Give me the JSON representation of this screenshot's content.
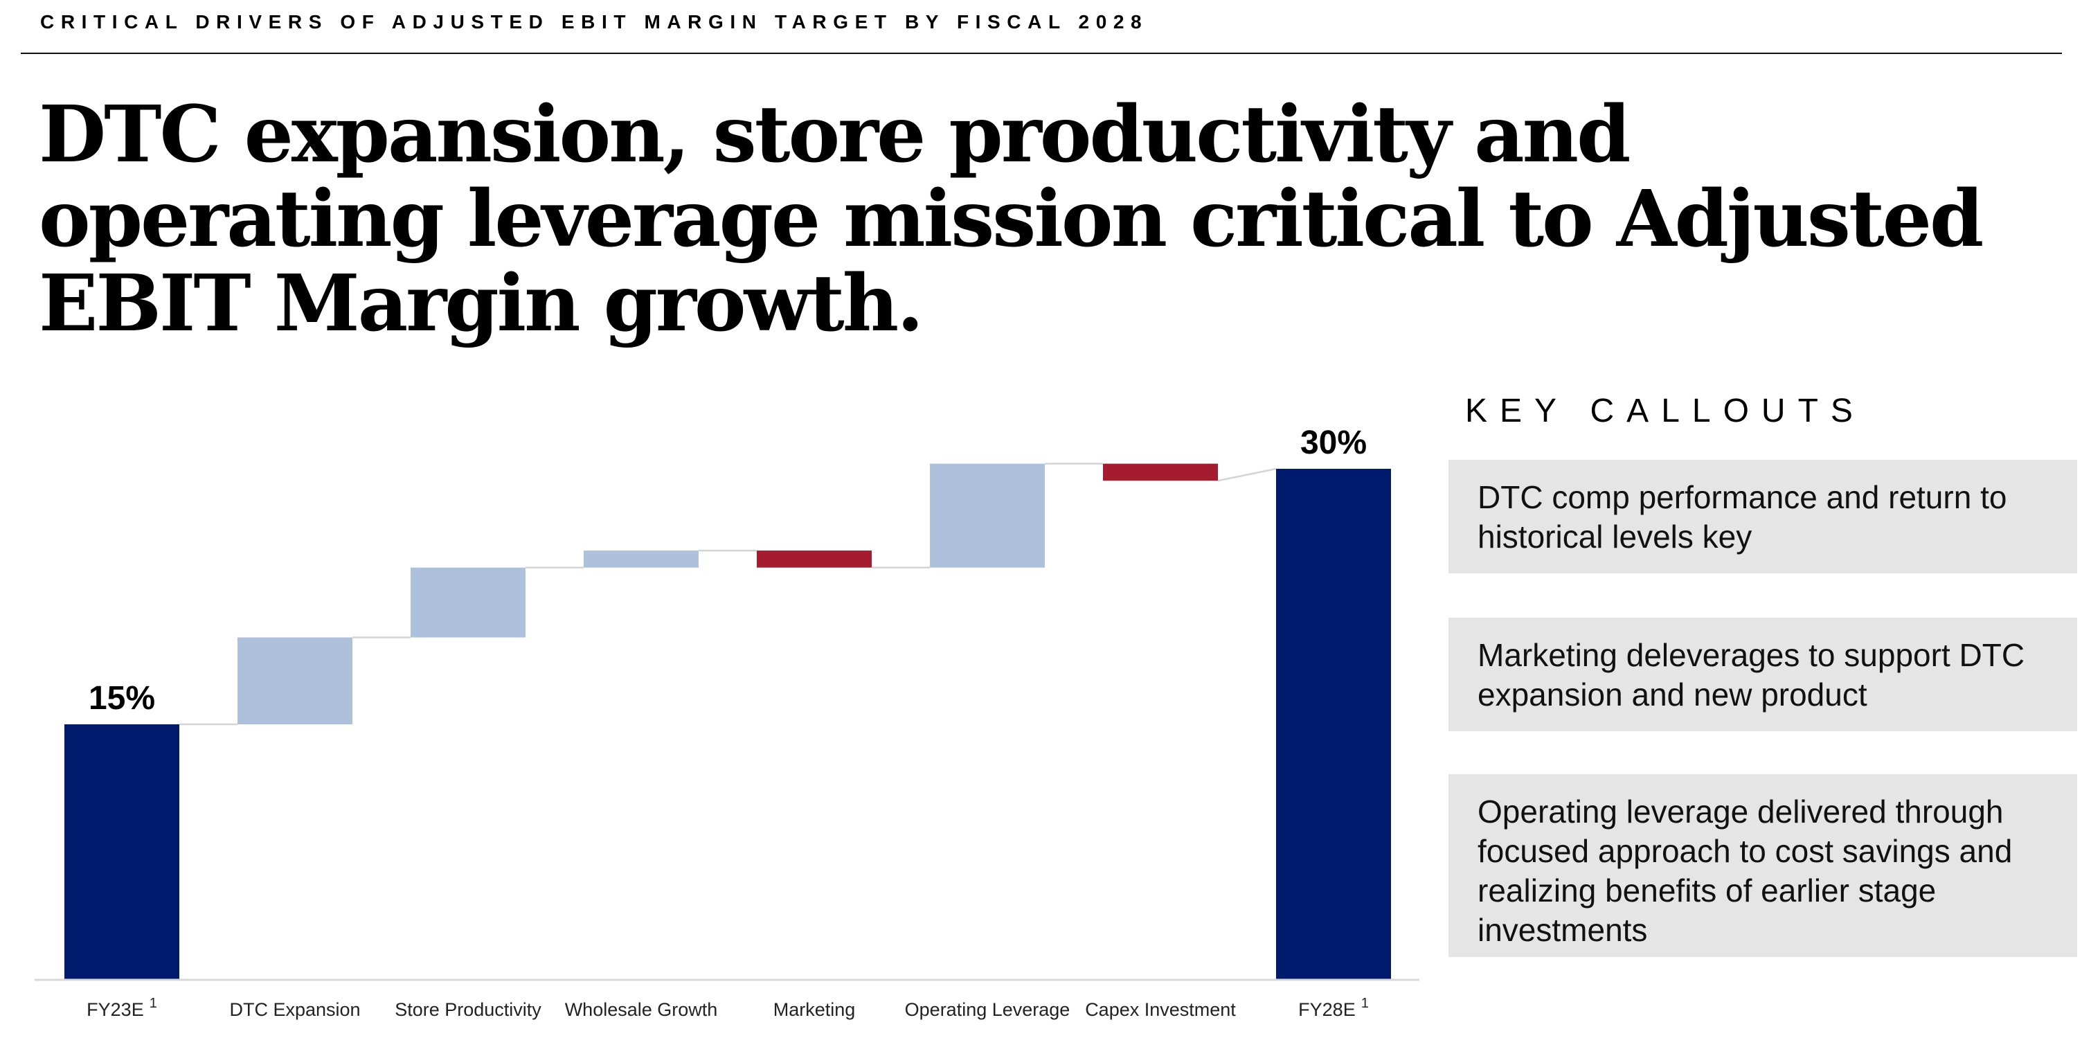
{
  "header": {
    "kicker": "CRITICAL DRIVERS OF ADJUSTED EBIT MARGIN TARGET BY FISCAL 2028",
    "title": "DTC expansion, store productivity and operating leverage mission critical to Adjusted EBIT Margin growth."
  },
  "callouts": {
    "title": "KEY CALLOUTS",
    "items": [
      "DTC comp performance and return to historical levels key",
      "Marketing deleverages to support DTC expansion and new product",
      "Operating leverage delivered through focused approach to cost savings and realizing benefits of earlier stage investments"
    ]
  },
  "chart_data": {
    "type": "bar",
    "subtype": "waterfall",
    "title": "",
    "xlabel": "",
    "ylabel": "",
    "ylim": [
      0,
      30
    ],
    "grid": false,
    "categories": [
      "FY23E",
      "DTC Expansion",
      "Store Productivity",
      "Wholesale Growth",
      "Marketing",
      "Operating Leverage",
      "Capex Investment",
      "FY28E"
    ],
    "footnotes": [
      "1",
      "",
      "",
      "",
      "",
      "",
      "",
      "1"
    ],
    "kinds": [
      "total",
      "increase",
      "increase",
      "increase",
      "decrease",
      "increase",
      "decrease",
      "total"
    ],
    "values": [
      15,
      5.1,
      4.1,
      1.0,
      -1.0,
      6.1,
      -1.0,
      30
    ],
    "data_labels": [
      "15%",
      "",
      "",
      "",
      "",
      "",
      "",
      "30%"
    ],
    "colors": {
      "total": "#001a6e",
      "increase": "#adc1dc",
      "decrease": "#a51c30",
      "connector": "#d4d4d4",
      "axis": "#d8d8d8",
      "tick_text": "#222222",
      "label_text": "#000000"
    }
  }
}
